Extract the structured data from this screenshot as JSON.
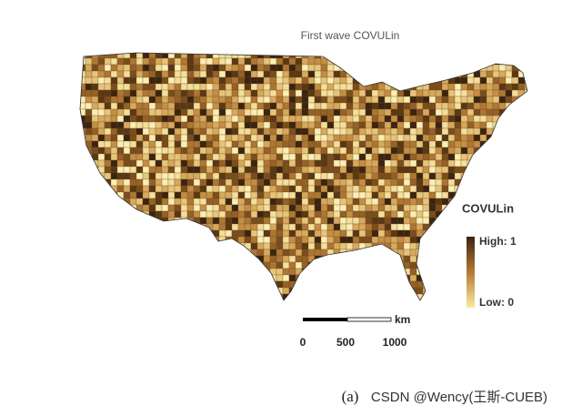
{
  "title": "First wave COVULin",
  "legend": {
    "title": "COVULin",
    "high": "High: 1",
    "low": "Low: 0"
  },
  "scale_bar": {
    "unit": "km",
    "labels": [
      "0",
      "500",
      "1000"
    ]
  },
  "caption": "(a)",
  "watermark": "CSDN @Wency(王斯-CUEB)"
}
